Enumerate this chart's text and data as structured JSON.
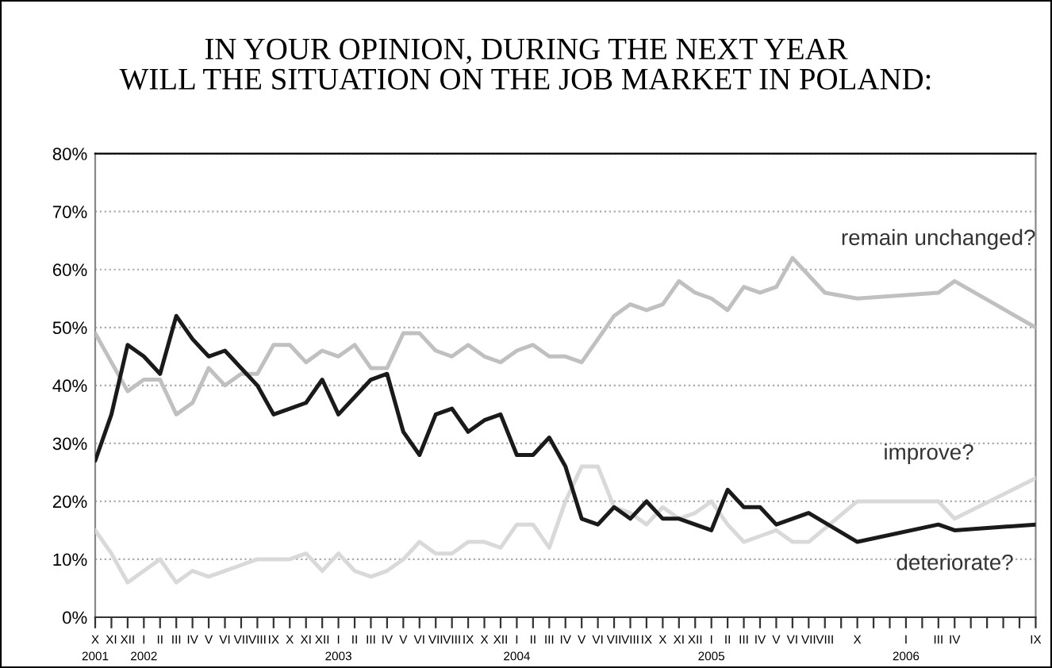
{
  "chart_data": {
    "type": "line",
    "title": "IN YOUR OPINION, DURING THE NEXT YEAR\nWILL THE SITUATION ON THE JOB MARKET IN POLAND:",
    "categories": [
      "X\n2001",
      "XI",
      "XII",
      "I\n2002",
      "II",
      "III",
      "IV",
      "V",
      "VI",
      "VII",
      "VIII",
      "IX",
      "X",
      "XI",
      "XII",
      "I\n2003",
      "II",
      "III",
      "IV",
      "V",
      "VI",
      "VII",
      "VIII",
      "IX",
      "X",
      "XII",
      "I\n2004",
      "II",
      "III",
      "IV",
      "V",
      "VI",
      "VII",
      "VIII",
      "IX",
      "X",
      "XI",
      "XII",
      "I\n2005",
      "II",
      "III",
      "IV",
      "V",
      "VI",
      "VII",
      "VIII",
      null,
      "X",
      null,
      null,
      "I\n2006",
      null,
      "III",
      "IV",
      null,
      null,
      null,
      null,
      "IX"
    ],
    "series": [
      {
        "name": "remain unchanged?",
        "color": "#c0c0c0",
        "values": [
          49,
          44,
          39,
          41,
          41,
          35,
          37,
          43,
          40,
          42,
          42,
          47,
          47,
          44,
          46,
          45,
          47,
          43,
          43,
          49,
          49,
          46,
          45,
          47,
          45,
          44,
          46,
          47,
          45,
          45,
          44,
          48,
          52,
          54,
          53,
          54,
          58,
          56,
          55,
          53,
          57,
          56,
          57,
          62,
          null,
          56,
          null,
          55,
          null,
          null,
          null,
          null,
          56,
          58,
          null,
          null,
          null,
          null,
          50
        ]
      },
      {
        "name": "improve?",
        "color": "#d9d9d9",
        "values": [
          15,
          11,
          6,
          8,
          10,
          6,
          8,
          7,
          8,
          9,
          10,
          10,
          10,
          11,
          8,
          11,
          8,
          7,
          8,
          10,
          13,
          11,
          11,
          13,
          13,
          12,
          16,
          16,
          12,
          20,
          26,
          26,
          19,
          18,
          16,
          19,
          17,
          18,
          20,
          16,
          13,
          14,
          15,
          13,
          13,
          null,
          null,
          20,
          null,
          null,
          null,
          null,
          20,
          17,
          null,
          null,
          null,
          null,
          24
        ]
      },
      {
        "name": "deteriorate?",
        "color": "#1a1a1a",
        "values": [
          27,
          35,
          47,
          45,
          42,
          52,
          48,
          45,
          46,
          43,
          40,
          35,
          36,
          37,
          41,
          35,
          38,
          41,
          42,
          32,
          28,
          35,
          36,
          32,
          34,
          35,
          28,
          28,
          31,
          26,
          17,
          16,
          19,
          17,
          20,
          17,
          17,
          16,
          15,
          22,
          19,
          19,
          16,
          17,
          18,
          null,
          null,
          13,
          null,
          null,
          null,
          null,
          16,
          15,
          null,
          null,
          null,
          null,
          16
        ]
      }
    ],
    "ylim": [
      0,
      80
    ],
    "yticks": [
      {
        "value": 0,
        "label": "0%"
      },
      {
        "value": 10,
        "label": "10%"
      },
      {
        "value": 20,
        "label": "20%"
      },
      {
        "value": 30,
        "label": "30%"
      },
      {
        "value": 40,
        "label": "40%"
      },
      {
        "value": 50,
        "label": "50%"
      },
      {
        "value": 60,
        "label": "60%"
      },
      {
        "value": 70,
        "label": "70%"
      },
      {
        "value": 80,
        "label": "80%"
      }
    ],
    "grid": "y",
    "legend": false,
    "marker": "none",
    "line_style": "solid"
  }
}
